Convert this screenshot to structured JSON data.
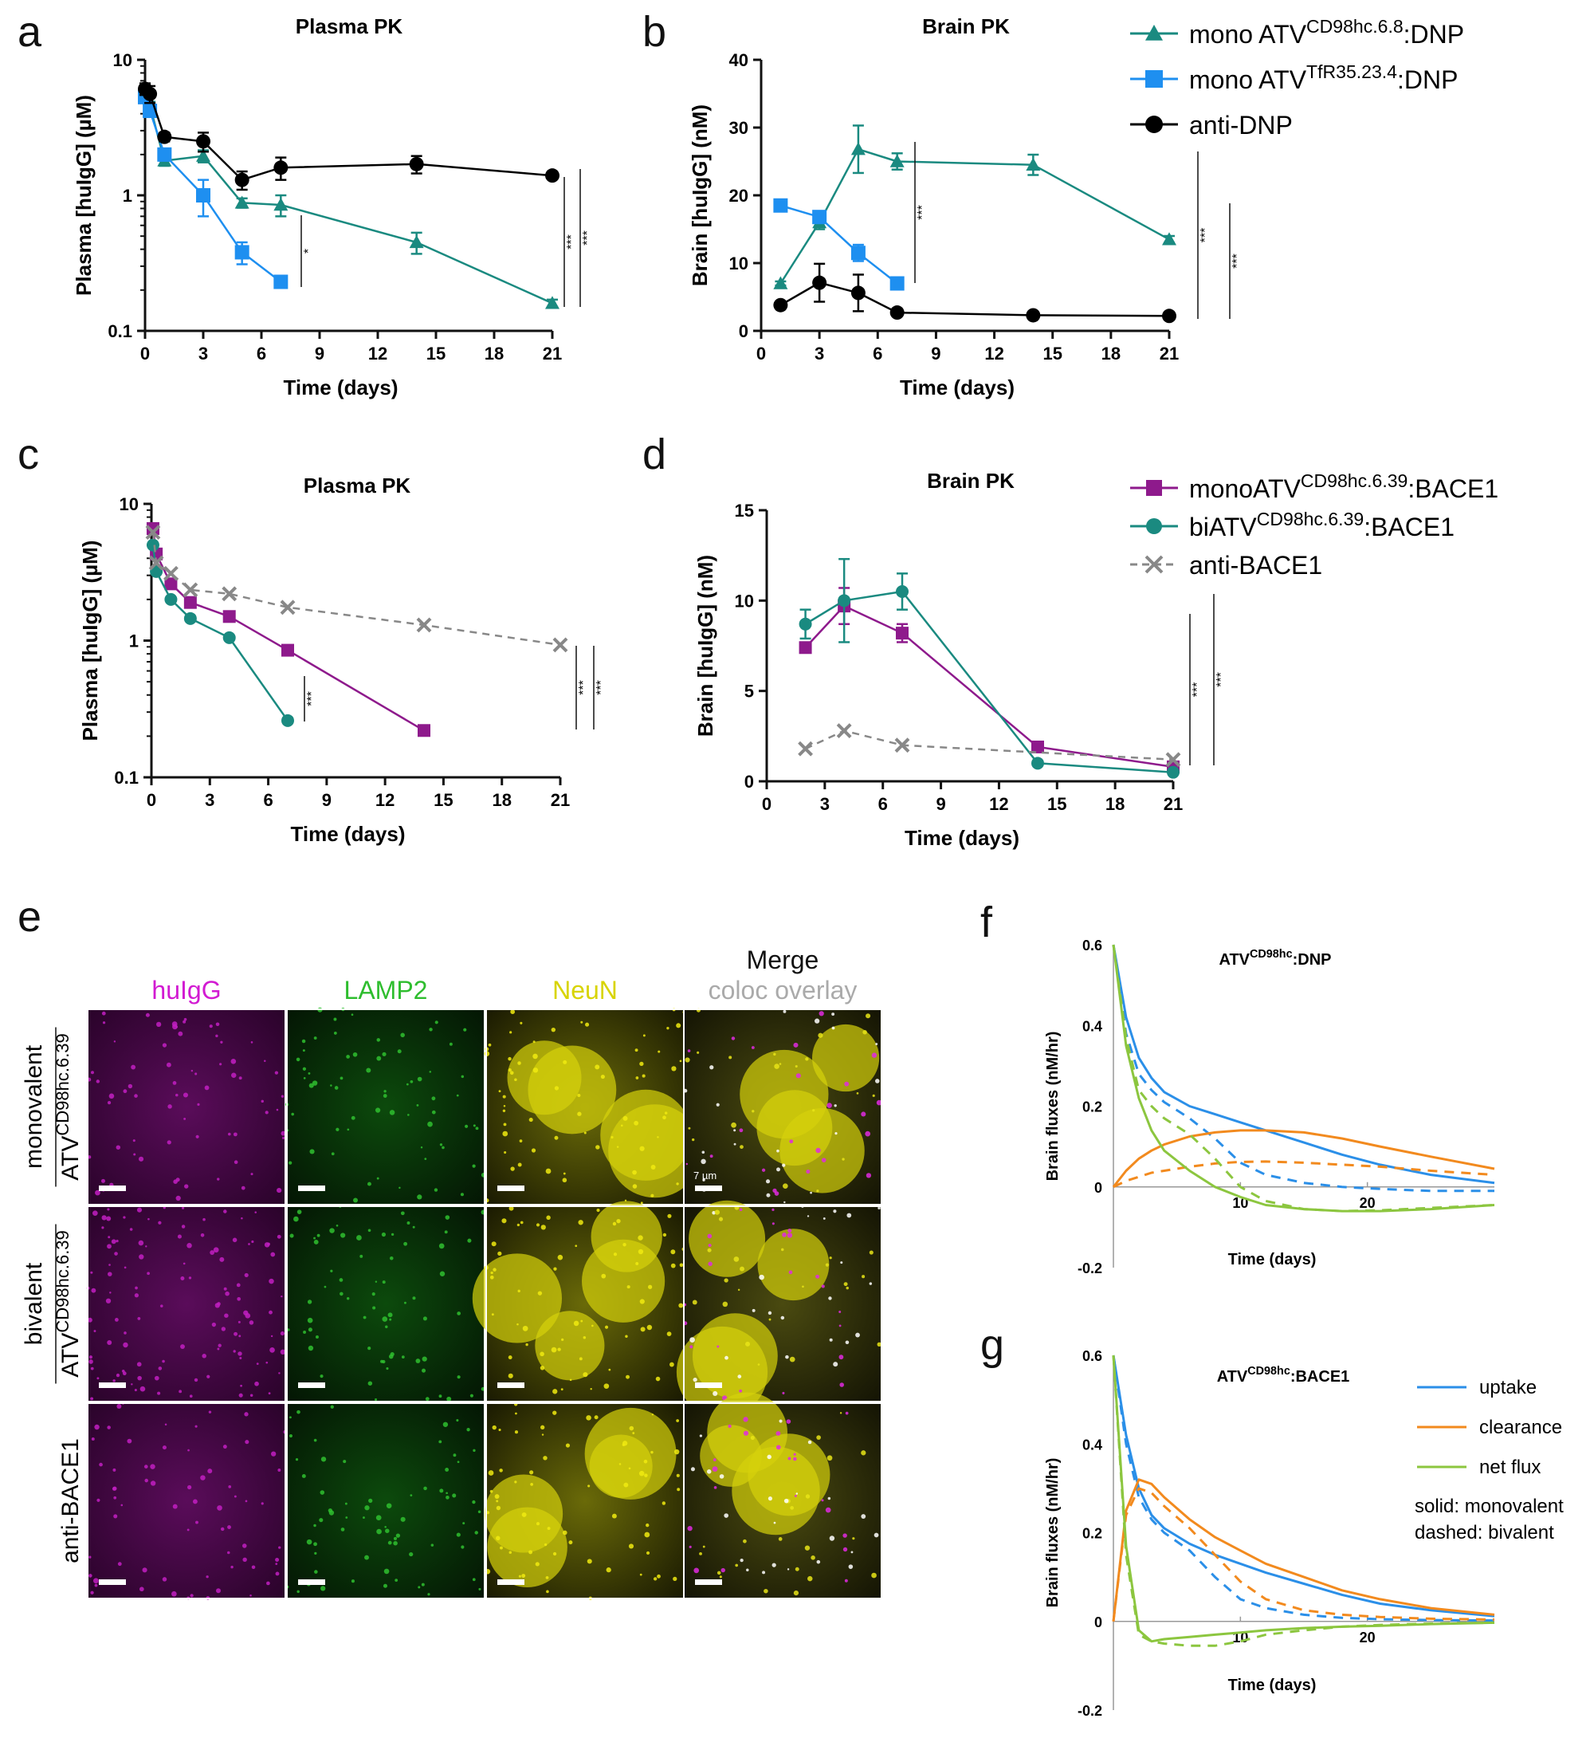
{
  "panel_letters": {
    "a": "a",
    "b": "b",
    "c": "c",
    "d": "d",
    "e": "e",
    "f": "f",
    "g": "g"
  },
  "legend_ab": [
    {
      "prefix": "mono ATV",
      "sup": "CD98hc.6.8",
      "suffix": ":DNP",
      "color": "#1a8a80",
      "marker": "triangle"
    },
    {
      "prefix": "mono ATV",
      "sup": "TfR35.23.4",
      "suffix": ":DNP",
      "color": "#1e8ff0",
      "marker": "square"
    },
    {
      "prefix": "anti-DNP",
      "sup": "",
      "suffix": "",
      "color": "#000000",
      "marker": "circle"
    }
  ],
  "legend_cd": [
    {
      "prefix": "monoATV",
      "sup": "CD98hc.6.39",
      "suffix": ":BACE1",
      "color": "#8e1a8c",
      "marker": "square",
      "dashed": false
    },
    {
      "prefix": "biATV",
      "sup": "CD98hc.6.39",
      "suffix": ":BACE1",
      "color": "#1a8a80",
      "marker": "circle",
      "dashed": false
    },
    {
      "prefix": "anti-BACE1",
      "sup": "",
      "suffix": "",
      "color": "#888888",
      "marker": "x",
      "dashed": true
    }
  ],
  "legend_g": {
    "items": [
      {
        "label": "uptake",
        "color": "#2b8fe8"
      },
      {
        "label": "clearance",
        "color": "#f28a1e"
      },
      {
        "label": "net flux",
        "color": "#8cc63f"
      }
    ],
    "notes": [
      "solid: monovalent",
      "dashed: bivalent"
    ]
  },
  "microscopy": {
    "columns": [
      {
        "label": "huIgG",
        "color": "#d21ad2"
      },
      {
        "label": "LAMP2",
        "color": "#2ebd2e"
      },
      {
        "label": "NeuN",
        "color": "#d8d400"
      },
      {
        "label": "Merge",
        "color": "#111111"
      }
    ],
    "merge_sub": {
      "label": "coloc overlay",
      "color": "#aaaaaa"
    },
    "rows": [
      {
        "group": "monovalent",
        "prefix": "ATV",
        "sup": "CD98hc.6.39"
      },
      {
        "group": "bivalent",
        "prefix": "ATV",
        "sup": "CD98hc.6.39"
      },
      {
        "group": "",
        "prefix": "anti-BACE1",
        "sup": ""
      }
    ],
    "scale_text": "7 µm"
  },
  "chart_data": [
    {
      "id": "a",
      "type": "line",
      "title": "Plasma PK",
      "xlabel": "Time (days)",
      "ylabel": "Plasma [huIgG] (µM)",
      "yscale": "log",
      "xlim": [
        0,
        21
      ],
      "ylim": [
        0.1,
        10
      ],
      "xticks": [
        "0",
        "3",
        "6",
        "9",
        "12",
        "15",
        "18",
        "21"
      ],
      "yticks": [
        "0.1",
        "1",
        "10"
      ],
      "series": [
        {
          "name": "mono ATV CD98hc.6.8:DNP",
          "color": "#1a8a80",
          "marker": "triangle",
          "x": [
            0,
            0.25,
            1,
            3,
            5,
            7,
            14,
            21
          ],
          "y": [
            5.8,
            4.6,
            1.8,
            1.95,
            0.88,
            0.85,
            0.45,
            0.16
          ],
          "err": [
            0.5,
            0.3,
            0.15,
            0.2,
            0.07,
            0.15,
            0.08,
            0.01
          ]
        },
        {
          "name": "mono ATV TfR35.23.4:DNP",
          "color": "#1e8ff0",
          "marker": "square",
          "x": [
            0,
            0.25,
            1,
            3,
            5,
            7
          ],
          "y": [
            5.3,
            4.2,
            2.0,
            1.0,
            0.38,
            0.23
          ],
          "err": [
            0.5,
            0.4,
            0.2,
            0.3,
            0.07,
            0.02
          ]
        },
        {
          "name": "anti-DNP",
          "color": "#000000",
          "marker": "circle",
          "x": [
            0,
            0.25,
            1,
            3,
            5,
            7,
            14,
            21
          ],
          "y": [
            6.1,
            5.6,
            2.7,
            2.5,
            1.3,
            1.6,
            1.7,
            1.4
          ],
          "err": [
            0.6,
            0.8,
            0.2,
            0.4,
            0.2,
            0.3,
            0.25,
            0.05
          ]
        }
      ],
      "significance": [
        "*",
        "***",
        "***"
      ]
    },
    {
      "id": "b",
      "type": "line",
      "title": "Brain PK",
      "xlabel": "Time (days)",
      "ylabel": "Brain [huIgG] (nM)",
      "yscale": "linear",
      "xlim": [
        0,
        21
      ],
      "ylim": [
        0,
        40
      ],
      "xticks": [
        "0",
        "3",
        "6",
        "9",
        "12",
        "15",
        "18",
        "21"
      ],
      "yticks": [
        "0",
        "10",
        "20",
        "30",
        "40"
      ],
      "series": [
        {
          "name": "mono ATV CD98hc.6.8:DNP",
          "color": "#1a8a80",
          "marker": "triangle",
          "x": [
            1,
            3,
            5,
            7,
            14,
            21
          ],
          "y": [
            7,
            16,
            26.8,
            25,
            24.5,
            13.5
          ],
          "err": [
            0.3,
            1,
            3.5,
            1.2,
            1.5,
            0.5
          ]
        },
        {
          "name": "mono ATV TfR35.23.4:DNP",
          "color": "#1e8ff0",
          "marker": "square",
          "x": [
            1,
            3,
            5,
            7
          ],
          "y": [
            18.5,
            16.8,
            11.5,
            7
          ],
          "err": [
            0.3,
            0.5,
            1.2,
            0.3
          ]
        },
        {
          "name": "anti-DNP",
          "color": "#000000",
          "marker": "circle",
          "x": [
            1,
            3,
            5,
            7,
            14,
            21
          ],
          "y": [
            3.8,
            7.1,
            5.6,
            2.7,
            2.3,
            2.2
          ],
          "err": [
            0.3,
            2.8,
            2.7,
            0.3,
            0.2,
            0.2
          ]
        }
      ],
      "significance": [
        "***",
        "***",
        "***"
      ]
    },
    {
      "id": "c",
      "type": "line",
      "title": "Plasma PK",
      "xlabel": "Time (days)",
      "ylabel": "Plasma [huIgG] (µM)",
      "yscale": "log",
      "xlim": [
        0,
        21
      ],
      "ylim": [
        0.1,
        10
      ],
      "xticks": [
        "0",
        "3",
        "6",
        "9",
        "12",
        "15",
        "18",
        "21"
      ],
      "yticks": [
        "0.1",
        "1",
        "10"
      ],
      "series": [
        {
          "name": "monoATV CD98hc.6.39:BACE1",
          "color": "#8e1a8c",
          "marker": "square",
          "dashed": false,
          "x": [
            0.08,
            0.25,
            1,
            2,
            4,
            7,
            14
          ],
          "y": [
            6.6,
            4.3,
            2.6,
            1.9,
            1.5,
            0.85,
            0.22
          ]
        },
        {
          "name": "biATV CD98hc.6.39:BACE1",
          "color": "#1a8a80",
          "marker": "circle",
          "dashed": false,
          "x": [
            0.08,
            0.25,
            1,
            2,
            4,
            7
          ],
          "y": [
            5.0,
            3.2,
            2.0,
            1.45,
            1.05,
            0.26
          ]
        },
        {
          "name": "anti-BACE1",
          "color": "#888888",
          "marker": "x",
          "dashed": true,
          "x": [
            0.08,
            0.25,
            1,
            2,
            4,
            7,
            14,
            21
          ],
          "y": [
            6.2,
            3.7,
            3.1,
            2.35,
            2.2,
            1.75,
            1.3,
            0.93
          ]
        }
      ],
      "significance": [
        "***",
        "***",
        "***"
      ]
    },
    {
      "id": "d",
      "type": "line",
      "title": "Brain PK",
      "xlabel": "Time (days)",
      "ylabel": "Brain [huIgG] (nM)",
      "yscale": "linear",
      "xlim": [
        0,
        21
      ],
      "ylim": [
        0,
        15
      ],
      "xticks": [
        "0",
        "3",
        "6",
        "9",
        "12",
        "15",
        "18",
        "21"
      ],
      "yticks": [
        "0",
        "5",
        "10",
        "15"
      ],
      "series": [
        {
          "name": "monoATV CD98hc.6.39:BACE1",
          "color": "#8e1a8c",
          "marker": "square",
          "dashed": false,
          "x": [
            2,
            4,
            7,
            14,
            21
          ],
          "y": [
            7.4,
            9.7,
            8.2,
            1.9,
            0.8
          ],
          "err": [
            0.2,
            1.0,
            0.5,
            0.1,
            0.1
          ]
        },
        {
          "name": "biATV CD98hc.6.39:BACE1",
          "color": "#1a8a80",
          "marker": "circle",
          "dashed": false,
          "x": [
            2,
            4,
            7,
            14,
            21
          ],
          "y": [
            8.7,
            10.0,
            10.5,
            1.0,
            0.5
          ],
          "err": [
            0.8,
            2.3,
            1.0,
            0.1,
            0.05
          ]
        },
        {
          "name": "anti-BACE1",
          "color": "#888888",
          "marker": "x",
          "dashed": true,
          "x": [
            2,
            4,
            7,
            21
          ],
          "y": [
            1.8,
            2.8,
            2.0,
            1.2
          ]
        }
      ],
      "significance": [
        "***",
        "***"
      ]
    },
    {
      "id": "f",
      "type": "line",
      "title_prefix": "ATV",
      "title_sup": "CD98hc",
      "title_suffix": ":DNP",
      "xlabel": "Time (days)",
      "ylabel": "Brain fluxes (nM/hr)",
      "xlim": [
        0,
        30
      ],
      "ylim": [
        -0.2,
        0.6
      ],
      "xticks": [
        "10",
        "20"
      ],
      "yticks": [
        "-0.2",
        "0",
        "0.2",
        "0.4",
        "0.6"
      ],
      "series": [
        {
          "name": "uptake monovalent",
          "color": "#2b8fe8",
          "dashed": false,
          "x": [
            0,
            1,
            2,
            3,
            4,
            6,
            8,
            10,
            12,
            15,
            18,
            21,
            25,
            30
          ],
          "y": [
            0.6,
            0.42,
            0.32,
            0.27,
            0.235,
            0.2,
            0.18,
            0.16,
            0.14,
            0.11,
            0.08,
            0.055,
            0.03,
            0.01
          ]
        },
        {
          "name": "uptake bivalent",
          "color": "#2b8fe8",
          "dashed": true,
          "x": [
            0,
            1,
            2,
            3,
            4,
            6,
            8,
            10,
            12,
            15,
            18,
            21,
            25,
            30
          ],
          "y": [
            0.6,
            0.38,
            0.28,
            0.24,
            0.21,
            0.17,
            0.12,
            0.06,
            0.03,
            0.01,
            0.0,
            -0.005,
            -0.01,
            -0.01
          ]
        },
        {
          "name": "clearance monovalent",
          "color": "#f28a1e",
          "dashed": false,
          "x": [
            0,
            1,
            2,
            3,
            4,
            6,
            8,
            10,
            12,
            15,
            18,
            21,
            25,
            30
          ],
          "y": [
            0.0,
            0.04,
            0.07,
            0.09,
            0.105,
            0.125,
            0.135,
            0.14,
            0.14,
            0.135,
            0.12,
            0.1,
            0.075,
            0.045
          ]
        },
        {
          "name": "clearance bivalent",
          "color": "#f28a1e",
          "dashed": true,
          "x": [
            0,
            1,
            2,
            3,
            4,
            6,
            8,
            10,
            12,
            15,
            18,
            21,
            25,
            30
          ],
          "y": [
            0.0,
            0.015,
            0.025,
            0.035,
            0.04,
            0.05,
            0.058,
            0.062,
            0.063,
            0.06,
            0.055,
            0.05,
            0.04,
            0.03
          ]
        },
        {
          "name": "net flux monovalent",
          "color": "#8cc63f",
          "dashed": false,
          "x": [
            0,
            1,
            2,
            3,
            4,
            6,
            8,
            10,
            12,
            15,
            18,
            21,
            25,
            30
          ],
          "y": [
            0.6,
            0.35,
            0.22,
            0.14,
            0.09,
            0.04,
            0.0,
            -0.025,
            -0.045,
            -0.055,
            -0.06,
            -0.06,
            -0.055,
            -0.045
          ]
        },
        {
          "name": "net flux bivalent",
          "color": "#8cc63f",
          "dashed": true,
          "x": [
            0,
            1,
            2,
            3,
            4,
            6,
            8,
            10,
            12,
            15,
            18,
            21,
            25,
            30
          ],
          "y": [
            0.6,
            0.37,
            0.24,
            0.2,
            0.17,
            0.13,
            0.07,
            0.0,
            -0.035,
            -0.055,
            -0.06,
            -0.058,
            -0.052,
            -0.045
          ]
        }
      ]
    },
    {
      "id": "g",
      "type": "line",
      "title_prefix": "ATV",
      "title_sup": "CD98hc",
      "title_suffix": ":BACE1",
      "xlabel": "Time (days)",
      "ylabel": "Brain fluxes (nM/hr)",
      "xlim": [
        0,
        30
      ],
      "ylim": [
        -0.2,
        0.6
      ],
      "xticks": [
        "10",
        "20"
      ],
      "yticks": [
        "-0.2",
        "0",
        "0.2",
        "0.4",
        "0.6"
      ],
      "series": [
        {
          "name": "uptake monovalent",
          "color": "#2b8fe8",
          "dashed": false,
          "x": [
            0,
            1,
            2,
            3,
            4,
            6,
            8,
            10,
            12,
            15,
            18,
            21,
            25,
            30
          ],
          "y": [
            0.6,
            0.42,
            0.3,
            0.24,
            0.21,
            0.175,
            0.15,
            0.13,
            0.11,
            0.085,
            0.06,
            0.04,
            0.025,
            0.012
          ]
        },
        {
          "name": "uptake bivalent",
          "color": "#2b8fe8",
          "dashed": true,
          "x": [
            0,
            1,
            2,
            3,
            4,
            6,
            8,
            10,
            12,
            15,
            18,
            21,
            25,
            30
          ],
          "y": [
            0.6,
            0.4,
            0.28,
            0.23,
            0.2,
            0.16,
            0.1,
            0.05,
            0.03,
            0.015,
            0.008,
            0.005,
            0.003,
            0.002
          ]
        },
        {
          "name": "clearance monovalent",
          "color": "#f28a1e",
          "dashed": false,
          "x": [
            0,
            1,
            2,
            3,
            4,
            6,
            8,
            10,
            12,
            15,
            18,
            21,
            25,
            30
          ],
          "y": [
            0.0,
            0.25,
            0.32,
            0.31,
            0.28,
            0.23,
            0.19,
            0.16,
            0.13,
            0.1,
            0.07,
            0.05,
            0.03,
            0.015
          ]
        },
        {
          "name": "clearance bivalent",
          "color": "#f28a1e",
          "dashed": true,
          "x": [
            0,
            1,
            2,
            3,
            4,
            6,
            8,
            10,
            12,
            15,
            18,
            21,
            25,
            30
          ],
          "y": [
            0.0,
            0.24,
            0.3,
            0.29,
            0.26,
            0.21,
            0.15,
            0.09,
            0.05,
            0.025,
            0.015,
            0.01,
            0.006,
            0.004
          ]
        },
        {
          "name": "net flux monovalent",
          "color": "#8cc63f",
          "dashed": false,
          "x": [
            0,
            1,
            2,
            3,
            4,
            6,
            8,
            10,
            12,
            15,
            18,
            21,
            25,
            30
          ],
          "y": [
            0.6,
            0.17,
            -0.02,
            -0.045,
            -0.04,
            -0.035,
            -0.03,
            -0.025,
            -0.02,
            -0.015,
            -0.012,
            -0.01,
            -0.006,
            -0.003
          ]
        },
        {
          "name": "net flux bivalent",
          "color": "#8cc63f",
          "dashed": true,
          "x": [
            0,
            1,
            2,
            3,
            4,
            6,
            8,
            10,
            12,
            15,
            18,
            21,
            25,
            30
          ],
          "y": [
            0.6,
            0.15,
            -0.03,
            -0.045,
            -0.05,
            -0.055,
            -0.055,
            -0.045,
            -0.03,
            -0.02,
            -0.012,
            -0.008,
            -0.005,
            -0.003
          ]
        }
      ]
    }
  ]
}
